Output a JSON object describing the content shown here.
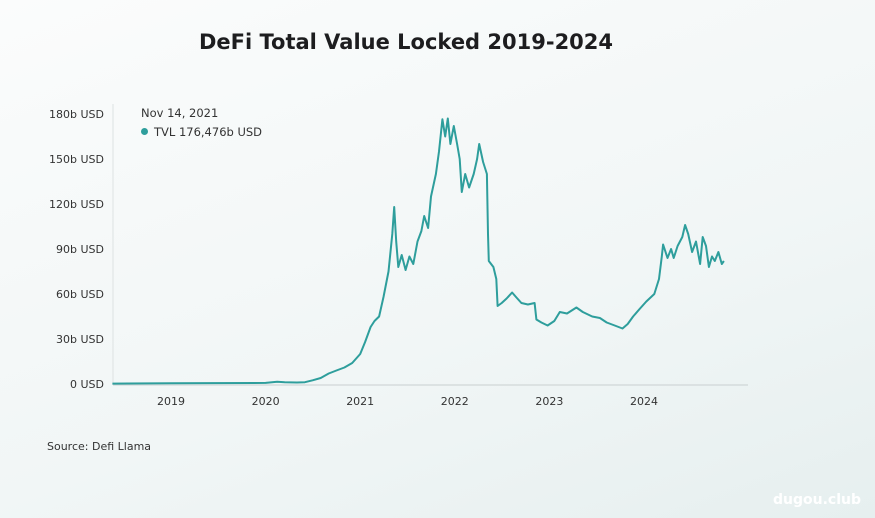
{
  "chart_data": {
    "type": "line",
    "title": "DeFi Total Value Locked 2019-2024",
    "xlabel": "",
    "ylabel": "",
    "ylim": [
      0,
      180
    ],
    "yticks": [
      0,
      30,
      60,
      90,
      120,
      150,
      180
    ],
    "ytick_labels": [
      "0 USD",
      "30b USD",
      "60b USD",
      "90b USD",
      "120b USD",
      "150b USD",
      "180b USD"
    ],
    "xticks": [
      "2019",
      "2020",
      "2021",
      "2022",
      "2023",
      "2024"
    ],
    "grid": false,
    "line_color": "#2e9e9c",
    "series": [
      {
        "points": [
          [
            "2018-05-20",
            0.3
          ],
          [
            "2019-01-01",
            0.5
          ],
          [
            "2019-06-01",
            0.6
          ],
          [
            "2020-01-01",
            0.7
          ],
          [
            "2020-02-15",
            1.5
          ],
          [
            "2020-03-15",
            1.2
          ],
          [
            "2020-05-01",
            1.0
          ],
          [
            "2020-06-01",
            1.2
          ],
          [
            "2020-07-01",
            2.5
          ],
          [
            "2020-08-01",
            4
          ],
          [
            "2020-09-01",
            7
          ],
          [
            "2020-10-01",
            9
          ],
          [
            "2020-11-01",
            11
          ],
          [
            "2020-12-01",
            14
          ],
          [
            "2021-01-01",
            20
          ],
          [
            "2021-01-20",
            28
          ],
          [
            "2021-02-10",
            38
          ],
          [
            "2021-02-25",
            42
          ],
          [
            "2021-03-15",
            45
          ],
          [
            "2021-04-01",
            58
          ],
          [
            "2021-04-20",
            75
          ],
          [
            "2021-05-05",
            100
          ],
          [
            "2021-05-12",
            118
          ],
          [
            "2021-05-20",
            95
          ],
          [
            "2021-05-28",
            78
          ],
          [
            "2021-06-10",
            86
          ],
          [
            "2021-06-25",
            76
          ],
          [
            "2021-07-10",
            85
          ],
          [
            "2021-07-25",
            80
          ],
          [
            "2021-08-10",
            95
          ],
          [
            "2021-08-25",
            102
          ],
          [
            "2021-09-05",
            112
          ],
          [
            "2021-09-20",
            104
          ],
          [
            "2021-10-01",
            125
          ],
          [
            "2021-10-20",
            140
          ],
          [
            "2021-11-01",
            155
          ],
          [
            "2021-11-14",
            176.5
          ],
          [
            "2021-11-25",
            165
          ],
          [
            "2021-12-05",
            177
          ],
          [
            "2021-12-15",
            160
          ],
          [
            "2021-12-28",
            172
          ],
          [
            "2022-01-10",
            160
          ],
          [
            "2022-01-20",
            150
          ],
          [
            "2022-01-28",
            128
          ],
          [
            "2022-02-10",
            140
          ],
          [
            "2022-02-25",
            131
          ],
          [
            "2022-03-15",
            140
          ],
          [
            "2022-03-28",
            150
          ],
          [
            "2022-04-05",
            160
          ],
          [
            "2022-04-20",
            148
          ],
          [
            "2022-05-05",
            140
          ],
          [
            "2022-05-09",
            100
          ],
          [
            "2022-05-12",
            82
          ],
          [
            "2022-05-30",
            78
          ],
          [
            "2022-06-10",
            70
          ],
          [
            "2022-06-15",
            52
          ],
          [
            "2022-07-01",
            54
          ],
          [
            "2022-07-20",
            57
          ],
          [
            "2022-08-10",
            61
          ],
          [
            "2022-08-25",
            58
          ],
          [
            "2022-09-15",
            54
          ],
          [
            "2022-10-10",
            53
          ],
          [
            "2022-11-05",
            54
          ],
          [
            "2022-11-12",
            43
          ],
          [
            "2022-12-01",
            41
          ],
          [
            "2022-12-25",
            39
          ],
          [
            "2023-01-20",
            42
          ],
          [
            "2023-02-10",
            48
          ],
          [
            "2023-03-10",
            47
          ],
          [
            "2023-04-15",
            51
          ],
          [
            "2023-05-10",
            48
          ],
          [
            "2023-06-15",
            45
          ],
          [
            "2023-07-15",
            44
          ],
          [
            "2023-08-10",
            41
          ],
          [
            "2023-09-10",
            39
          ],
          [
            "2023-10-10",
            37
          ],
          [
            "2023-10-30",
            40
          ],
          [
            "2023-11-20",
            45
          ],
          [
            "2023-12-15",
            50
          ],
          [
            "2024-01-10",
            55
          ],
          [
            "2024-02-10",
            60
          ],
          [
            "2024-02-28",
            70
          ],
          [
            "2024-03-10",
            85
          ],
          [
            "2024-03-15",
            93
          ],
          [
            "2024-04-01",
            84
          ],
          [
            "2024-04-15",
            90
          ],
          [
            "2024-04-25",
            84
          ],
          [
            "2024-05-10",
            92
          ],
          [
            "2024-05-28",
            98
          ],
          [
            "2024-06-08",
            106
          ],
          [
            "2024-06-20",
            100
          ],
          [
            "2024-07-05",
            88
          ],
          [
            "2024-07-20",
            95
          ],
          [
            "2024-08-05",
            80
          ],
          [
            "2024-08-15",
            98
          ],
          [
            "2024-08-28",
            92
          ],
          [
            "2024-09-08",
            78
          ],
          [
            "2024-09-20",
            85
          ],
          [
            "2024-10-01",
            82
          ],
          [
            "2024-10-15",
            88
          ],
          [
            "2024-10-28",
            80
          ],
          [
            "2024-11-05",
            82
          ]
        ]
      }
    ],
    "tooltip": {
      "date": "Nov 14, 2021",
      "label": "TVL 176,476b USD"
    },
    "source": "Source: Defi Llama"
  },
  "watermark": "dugou.club"
}
